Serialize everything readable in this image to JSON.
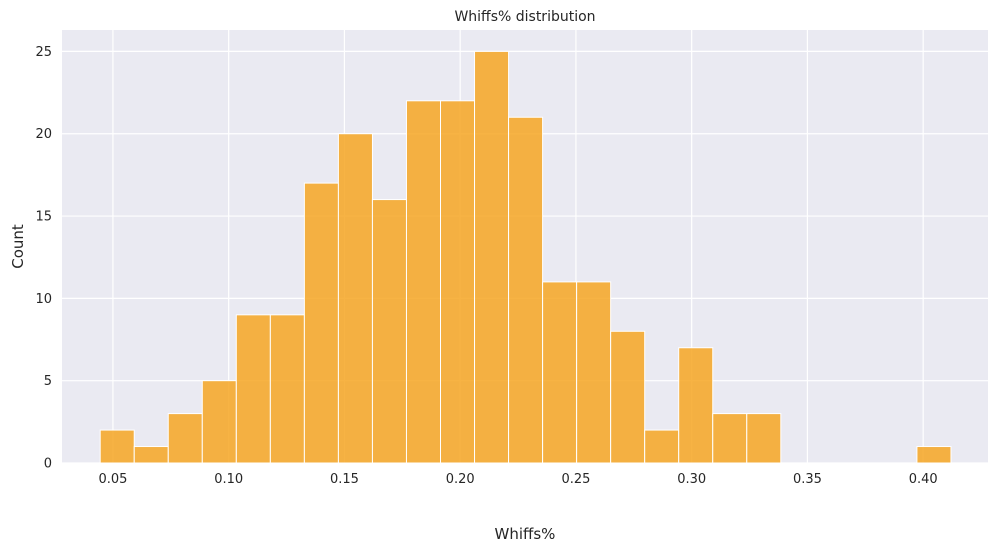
{
  "chart_data": {
    "type": "bar",
    "subtype": "histogram",
    "title": "Whiffs% distribution",
    "xlabel": "Whiffs%",
    "ylabel": "Count",
    "bin_edges": [
      0.0445,
      0.0592,
      0.0739,
      0.0886,
      0.1033,
      0.118,
      0.1327,
      0.1474,
      0.1621,
      0.1768,
      0.1915,
      0.2062,
      0.2209,
      0.2356,
      0.2503,
      0.265,
      0.2797,
      0.2944,
      0.3091,
      0.3238,
      0.3385,
      0.3532,
      0.3679,
      0.3826,
      0.3973,
      0.412
    ],
    "counts": [
      2,
      1,
      3,
      5,
      9,
      9,
      17,
      20,
      16,
      22,
      22,
      25,
      21,
      11,
      11,
      8,
      2,
      7,
      3,
      3,
      0,
      0,
      0,
      0,
      1
    ],
    "xlim": [
      0.028,
      0.428
    ],
    "ylim": [
      0,
      26.3
    ],
    "xticks": [
      0.05,
      0.1,
      0.15,
      0.2,
      0.25,
      0.3,
      0.35,
      0.4
    ],
    "xtick_labels": [
      "0.05",
      "0.10",
      "0.15",
      "0.20",
      "0.25",
      "0.30",
      "0.35",
      "0.40"
    ],
    "yticks": [
      0,
      5,
      10,
      15,
      20,
      25
    ],
    "ytick_labels": [
      "0",
      "5",
      "10",
      "15",
      "20",
      "25"
    ],
    "grid": true,
    "bar_color": "#f6a623",
    "bar_edge_color": "#ffffff",
    "plot_background": "#eaeaf2",
    "grid_color": "#ffffff"
  }
}
